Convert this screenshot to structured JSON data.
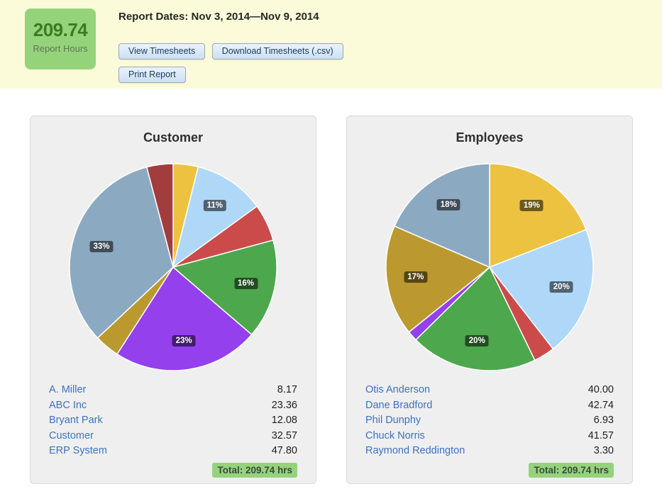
{
  "header": {
    "report_hours_value": "209.74",
    "report_hours_label": "Report Hours",
    "report_dates": "Report Dates: Nov 3, 2014—Nov 9, 2014",
    "buttons": [
      "View Timesheets",
      "Download Timesheets (.csv)",
      "Print Report"
    ]
  },
  "colors": {
    "band_bg": "#FBFBD9",
    "green_accent": "#95D37B",
    "link_blue": "#3B72C1",
    "card_bg": "#EFEFEF",
    "pie_label_bg": "rgba(0,0,0,0.54)"
  },
  "chart_data": [
    {
      "type": "pie",
      "title": "Customer",
      "start_angle_deg": 0,
      "direction": "clockwise",
      "slices": [
        {
          "name": "A. Miller",
          "percent": 3.9,
          "color": "#EDC240",
          "pct_label": ""
        },
        {
          "name": "ABC Inc",
          "percent": 11.1,
          "color": "#AFD8F8",
          "pct_label": "11%"
        },
        {
          "name": "Bryant Park",
          "percent": 5.8,
          "color": "#CB4B4B",
          "pct_label": ""
        },
        {
          "name": "Customer",
          "percent": 15.5,
          "color": "#4DA74D",
          "pct_label": "16%"
        },
        {
          "name": "ERP System",
          "percent": 22.8,
          "color": "#9440ED",
          "pct_label": "23%"
        },
        {
          "name": "",
          "percent": 3.9,
          "color": "#BC992F",
          "pct_label": ""
        },
        {
          "name": "",
          "percent": 32.9,
          "color": "#8CA9C2",
          "pct_label": "33%"
        },
        {
          "name": "",
          "percent": 4.1,
          "color": "#A23D3D",
          "pct_label": ""
        }
      ],
      "rows": [
        {
          "name": "A. Miller",
          "value": "8.17"
        },
        {
          "name": "ABC Inc",
          "value": "23.36"
        },
        {
          "name": "Bryant Park",
          "value": "12.08"
        },
        {
          "name": "Customer",
          "value": "32.57"
        },
        {
          "name": "ERP System",
          "value": "47.80"
        }
      ],
      "total_label": "Total: 209.74 hrs"
    },
    {
      "type": "pie",
      "title": "Employees",
      "start_angle_deg": 0,
      "direction": "clockwise",
      "slices": [
        {
          "name": "Otis Anderson",
          "percent": 19.1,
          "color": "#EDC240",
          "pct_label": "19%"
        },
        {
          "name": "Dane Bradford",
          "percent": 20.4,
          "color": "#AFD8F8",
          "pct_label": "20%"
        },
        {
          "name": "Phil Dunphy",
          "percent": 3.3,
          "color": "#CB4B4B",
          "pct_label": ""
        },
        {
          "name": "Chuck Norris",
          "percent": 19.8,
          "color": "#4DA74D",
          "pct_label": "20%"
        },
        {
          "name": "Raymond Reddington",
          "percent": 1.6,
          "color": "#9440ED",
          "pct_label": ""
        },
        {
          "name": "",
          "percent": 17.3,
          "color": "#BC992F",
          "pct_label": "17%"
        },
        {
          "name": "",
          "percent": 18.5,
          "color": "#8CA9C2",
          "pct_label": "18%"
        }
      ],
      "rows": [
        {
          "name": "Otis Anderson",
          "value": "40.00"
        },
        {
          "name": "Dane Bradford",
          "value": "42.74"
        },
        {
          "name": "Phil Dunphy",
          "value": "6.93"
        },
        {
          "name": "Chuck Norris",
          "value": "41.57"
        },
        {
          "name": "Raymond Reddington",
          "value": "3.30"
        }
      ],
      "total_label": "Total: 209.74 hrs"
    }
  ]
}
